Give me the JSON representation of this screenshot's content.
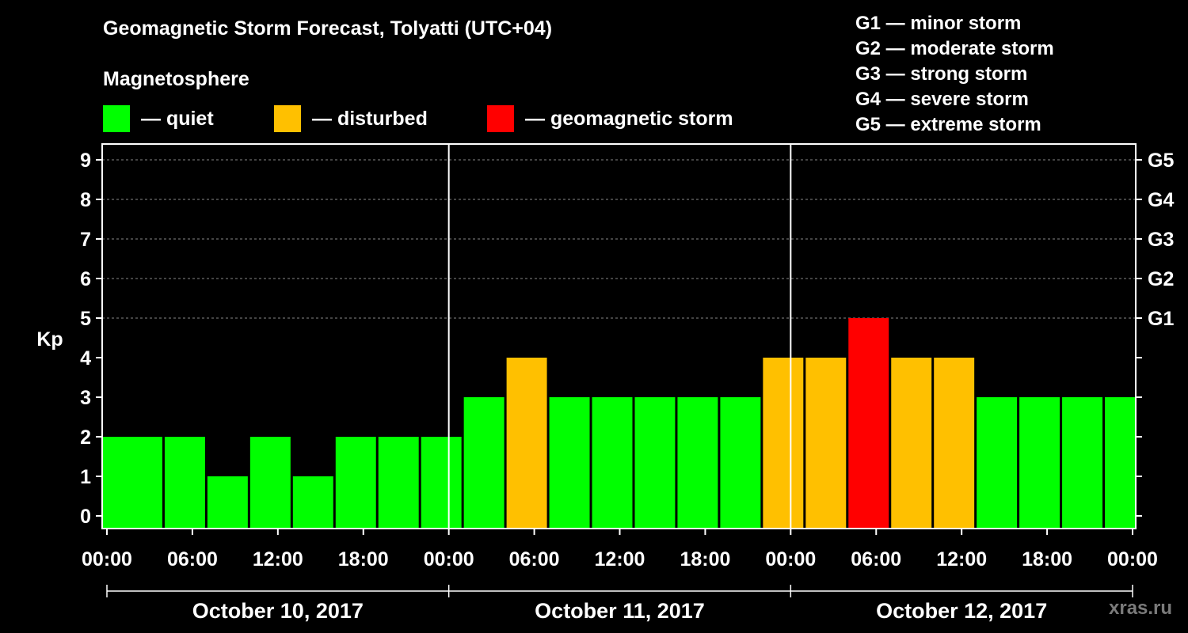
{
  "title": "Geomagnetic Storm Forecast, Tolyatti (UTC+04)",
  "magnetosphere_label": "Magnetosphere",
  "legend": [
    {
      "label": "— quiet",
      "color": "#00ff00"
    },
    {
      "label": "— disturbed",
      "color": "#ffc000"
    },
    {
      "label": "— geomagnetic storm",
      "color": "#ff0000"
    }
  ],
  "storm_levels": [
    "G1 — minor storm",
    "G2 — moderate storm",
    "G3 — strong storm",
    "G4 — severe storm",
    "G5 — extreme storm"
  ],
  "watermark": "xras.ru",
  "chart_data": {
    "type": "bar",
    "ylabel": "Kp",
    "ylim": [
      -0.3,
      9.4
    ],
    "y_ticks": [
      0,
      1,
      2,
      3,
      4,
      5,
      6,
      7,
      8,
      9
    ],
    "grid_lines_at": [
      5,
      6,
      7,
      8,
      9
    ],
    "right_axis": [
      {
        "kp": 5,
        "label": "G1"
      },
      {
        "kp": 6,
        "label": "G2"
      },
      {
        "kp": 7,
        "label": "G3"
      },
      {
        "kp": 8,
        "label": "G4"
      },
      {
        "kp": 9,
        "label": "G5"
      }
    ],
    "x_range_hours": [
      0,
      72
    ],
    "x_tick_labels": [
      "00:00",
      "06:00",
      "12:00",
      "18:00",
      "00:00",
      "06:00",
      "12:00",
      "18:00",
      "00:00",
      "06:00",
      "12:00",
      "18:00",
      "00:00"
    ],
    "days": [
      "October 10, 2017",
      "October 11, 2017",
      "October 12, 2017"
    ],
    "bar_start_hours": [
      -1,
      1,
      4,
      7,
      10,
      13,
      16,
      19,
      22,
      25,
      28,
      31,
      34,
      37,
      40,
      43,
      46,
      49,
      52,
      55,
      58,
      61,
      64,
      67,
      70
    ],
    "bar_width_hours": 3,
    "values": [
      2,
      2,
      2,
      1,
      2,
      1,
      2,
      2,
      2,
      3,
      4,
      3,
      3,
      3,
      3,
      3,
      4,
      4,
      5,
      4,
      4,
      3,
      3,
      3,
      3
    ],
    "colors": {
      "quiet": "#00ff00",
      "disturbed": "#ffc000",
      "storm": "#ff0000"
    }
  }
}
